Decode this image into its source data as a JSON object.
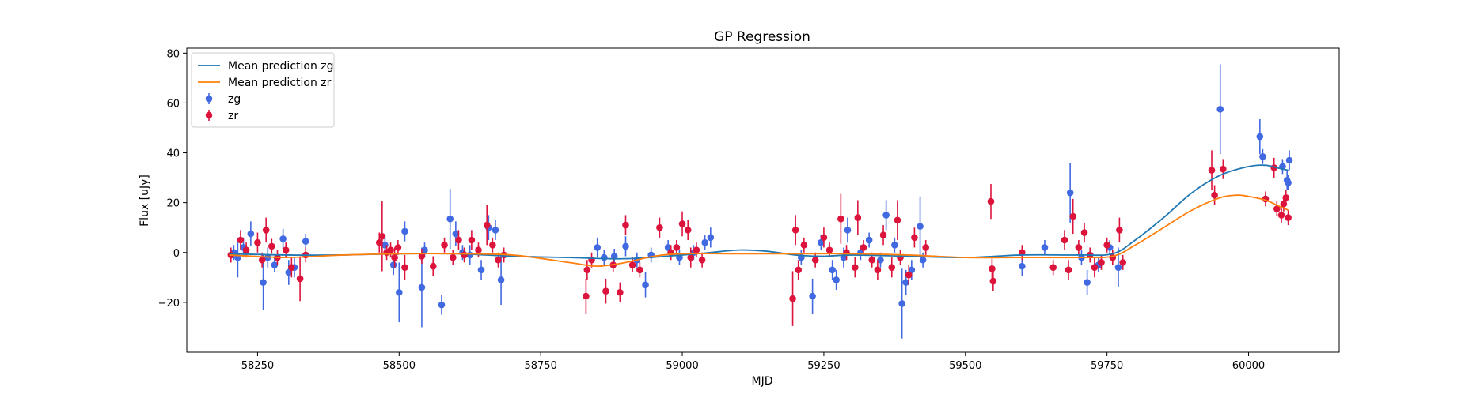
{
  "chart_data": {
    "type": "scatter",
    "title": "GP Regression",
    "xlabel": "MJD",
    "ylabel": "Flux [uJy]",
    "xlim": [
      58125,
      60160
    ],
    "ylim": [
      -40,
      82
    ],
    "xticks": [
      58250,
      58500,
      58750,
      59000,
      59250,
      59500,
      59750,
      60000
    ],
    "yticks": [
      -20,
      0,
      20,
      40,
      60,
      80
    ],
    "xtick_labels": [
      "58250",
      "58500",
      "58750",
      "59000",
      "59250",
      "59500",
      "59750",
      "60000"
    ],
    "ytick_labels": [
      "−20",
      "0",
      "20",
      "40",
      "60",
      "80"
    ],
    "legend_position": "upper-left",
    "legend": [
      {
        "label": "Mean prediction zg",
        "kind": "line",
        "color": "#1f77b4"
      },
      {
        "label": "Mean prediction zr",
        "kind": "line",
        "color": "#ff7f0e"
      },
      {
        "label": "zg",
        "kind": "errorbar",
        "color": "#4169e1"
      },
      {
        "label": "zr",
        "kind": "errorbar",
        "color": "#dc143c"
      }
    ],
    "lines": [
      {
        "name": "Mean prediction zg",
        "color": "#1f77b4",
        "x": [
          58200,
          58300,
          58400,
          58500,
          58600,
          58700,
          58800,
          58900,
          59000,
          59050,
          59100,
          59150,
          59200,
          59250,
          59300,
          59400,
          59500,
          59600,
          59700,
          59760,
          59800,
          59850,
          59900,
          59950,
          60000,
          60030,
          60050,
          60070
        ],
        "y": [
          -0.5,
          -1,
          -1,
          -0.5,
          -0.5,
          -1.5,
          -2,
          -2.5,
          -1,
          0,
          1,
          0.5,
          -1,
          -1.5,
          -1,
          -1.5,
          -2,
          -1,
          -1,
          -0.5,
          5,
          14,
          24,
          31,
          34.5,
          35,
          34,
          33
        ]
      },
      {
        "name": "Mean prediction zr",
        "color": "#ff7f0e",
        "x": [
          58200,
          58300,
          58400,
          58500,
          58600,
          58700,
          58800,
          58850,
          58900,
          58950,
          59000,
          59100,
          59200,
          59300,
          59400,
          59500,
          59600,
          59700,
          59760,
          59800,
          59850,
          59900,
          59950,
          59980,
          60000,
          60030,
          60050,
          60070
        ],
        "y": [
          -1,
          -2,
          -1,
          -0.5,
          -0.5,
          -1,
          -4,
          -5.5,
          -4,
          -1.5,
          -0.5,
          -0.5,
          -0.5,
          -0.5,
          -1,
          -2,
          -2,
          -2,
          -1.5,
          3,
          10,
          17,
          22,
          23,
          22.5,
          21,
          19,
          17
        ]
      }
    ],
    "series": [
      {
        "name": "zg",
        "color": "#4169e1",
        "points": [
          {
            "x": 58208,
            "y": 0,
            "err": 3
          },
          {
            "x": 58215,
            "y": -2,
            "err": 8
          },
          {
            "x": 58225,
            "y": 2,
            "err": 4
          },
          {
            "x": 58238,
            "y": 7.5,
            "err": 5
          },
          {
            "x": 58260,
            "y": -12,
            "err": 11
          },
          {
            "x": 58268,
            "y": -2,
            "err": 4
          },
          {
            "x": 58280,
            "y": -5,
            "err": 3
          },
          {
            "x": 58295,
            "y": 5.5,
            "err": 4
          },
          {
            "x": 58305,
            "y": -8,
            "err": 5
          },
          {
            "x": 58315,
            "y": -6,
            "err": 4
          },
          {
            "x": 58335,
            "y": 4.5,
            "err": 3
          },
          {
            "x": 58475,
            "y": 3,
            "err": 4
          },
          {
            "x": 58490,
            "y": -5,
            "err": 4
          },
          {
            "x": 58500,
            "y": -16,
            "err": 12
          },
          {
            "x": 58510,
            "y": 8.5,
            "err": 4
          },
          {
            "x": 58540,
            "y": -14,
            "err": 16
          },
          {
            "x": 58545,
            "y": 1,
            "err": 3
          },
          {
            "x": 58575,
            "y": -21,
            "err": 4
          },
          {
            "x": 58590,
            "y": 13.5,
            "err": 12
          },
          {
            "x": 58600,
            "y": 7.5,
            "err": 5
          },
          {
            "x": 58612,
            "y": 0,
            "err": 3
          },
          {
            "x": 58625,
            "y": -1,
            "err": 4
          },
          {
            "x": 58645,
            "y": -7,
            "err": 4
          },
          {
            "x": 58658,
            "y": 10,
            "err": 5
          },
          {
            "x": 58670,
            "y": 9,
            "err": 4
          },
          {
            "x": 58680,
            "y": -11,
            "err": 10
          },
          {
            "x": 58850,
            "y": 2,
            "err": 4
          },
          {
            "x": 58862,
            "y": -2,
            "err": 3
          },
          {
            "x": 58880,
            "y": -1.5,
            "err": 3
          },
          {
            "x": 58900,
            "y": 2.5,
            "err": 4
          },
          {
            "x": 58920,
            "y": -3,
            "err": 3
          },
          {
            "x": 58935,
            "y": -13,
            "err": 5
          },
          {
            "x": 58945,
            "y": -1,
            "err": 3
          },
          {
            "x": 58975,
            "y": 2,
            "err": 3
          },
          {
            "x": 58995,
            "y": -2,
            "err": 3
          },
          {
            "x": 59020,
            "y": 0,
            "err": 3
          },
          {
            "x": 59040,
            "y": 4,
            "err": 3
          },
          {
            "x": 59050,
            "y": 6,
            "err": 4
          },
          {
            "x": 59210,
            "y": -2,
            "err": 3
          },
          {
            "x": 59230,
            "y": -17.5,
            "err": 7
          },
          {
            "x": 59245,
            "y": 4,
            "err": 3
          },
          {
            "x": 59265,
            "y": -7,
            "err": 4
          },
          {
            "x": 59272,
            "y": -11,
            "err": 4
          },
          {
            "x": 59285,
            "y": -2,
            "err": 4
          },
          {
            "x": 59292,
            "y": 9,
            "err": 5
          },
          {
            "x": 59315,
            "y": 0,
            "err": 3
          },
          {
            "x": 59330,
            "y": 5,
            "err": 3
          },
          {
            "x": 59350,
            "y": -3,
            "err": 3
          },
          {
            "x": 59360,
            "y": 15,
            "err": 6
          },
          {
            "x": 59375,
            "y": 3,
            "err": 3
          },
          {
            "x": 59388,
            "y": -20.5,
            "err": 14
          },
          {
            "x": 59395,
            "y": -12,
            "err": 5
          },
          {
            "x": 59405,
            "y": -7,
            "err": 4
          },
          {
            "x": 59420,
            "y": 10.5,
            "err": 12
          },
          {
            "x": 59425,
            "y": -3,
            "err": 3
          },
          {
            "x": 59600,
            "y": -5.5,
            "err": 4
          },
          {
            "x": 59640,
            "y": 2,
            "err": 3
          },
          {
            "x": 59685,
            "y": 24,
            "err": 12
          },
          {
            "x": 59705,
            "y": -2,
            "err": 3
          },
          {
            "x": 59715,
            "y": -12,
            "err": 5
          },
          {
            "x": 59735,
            "y": -5,
            "err": 3
          },
          {
            "x": 59755,
            "y": 2,
            "err": 3
          },
          {
            "x": 59770,
            "y": -6,
            "err": 8
          },
          {
            "x": 59950,
            "y": 57.5,
            "err": 18
          },
          {
            "x": 60020,
            "y": 46.5,
            "err": 7
          },
          {
            "x": 60025,
            "y": 38.5,
            "err": 3
          },
          {
            "x": 60060,
            "y": 34.5,
            "err": 3
          },
          {
            "x": 60068,
            "y": 29,
            "err": 4
          },
          {
            "x": 60072,
            "y": 37,
            "err": 4
          },
          {
            "x": 60070,
            "y": 28,
            "err": 3
          }
        ]
      },
      {
        "name": "zr",
        "color": "#dc143c",
        "points": [
          {
            "x": 58203,
            "y": -1,
            "err": 3
          },
          {
            "x": 58220,
            "y": 5,
            "err": 4
          },
          {
            "x": 58230,
            "y": 1,
            "err": 3
          },
          {
            "x": 58250,
            "y": 4,
            "err": 4
          },
          {
            "x": 58258,
            "y": -3,
            "err": 3
          },
          {
            "x": 58265,
            "y": 9,
            "err": 5
          },
          {
            "x": 58275,
            "y": 2.5,
            "err": 3
          },
          {
            "x": 58285,
            "y": -2,
            "err": 3
          },
          {
            "x": 58300,
            "y": 1,
            "err": 3
          },
          {
            "x": 58310,
            "y": -6,
            "err": 4
          },
          {
            "x": 58325,
            "y": -10.5,
            "err": 9
          },
          {
            "x": 58335,
            "y": -1,
            "err": 3
          },
          {
            "x": 58465,
            "y": 4,
            "err": 4
          },
          {
            "x": 58470,
            "y": 6.5,
            "err": 14
          },
          {
            "x": 58478,
            "y": 0,
            "err": 3
          },
          {
            "x": 58485,
            "y": 1,
            "err": 3
          },
          {
            "x": 58492,
            "y": -2,
            "err": 4
          },
          {
            "x": 58498,
            "y": 2,
            "err": 3
          },
          {
            "x": 58510,
            "y": -6,
            "err": 5
          },
          {
            "x": 58540,
            "y": -1.5,
            "err": 3
          },
          {
            "x": 58560,
            "y": -5.5,
            "err": 4
          },
          {
            "x": 58580,
            "y": 3,
            "err": 3
          },
          {
            "x": 58595,
            "y": -2,
            "err": 3
          },
          {
            "x": 58605,
            "y": 5,
            "err": 4
          },
          {
            "x": 58615,
            "y": -1,
            "err": 3
          },
          {
            "x": 58628,
            "y": 5,
            "err": 4
          },
          {
            "x": 58640,
            "y": 1,
            "err": 3
          },
          {
            "x": 58655,
            "y": 11,
            "err": 8
          },
          {
            "x": 58665,
            "y": 3,
            "err": 3
          },
          {
            "x": 58675,
            "y": -3,
            "err": 3
          },
          {
            "x": 58685,
            "y": -1,
            "err": 3
          },
          {
            "x": 58830,
            "y": -17.5,
            "err": 7
          },
          {
            "x": 58832,
            "y": -7,
            "err": 4
          },
          {
            "x": 58840,
            "y": -3,
            "err": 3
          },
          {
            "x": 58865,
            "y": -15.5,
            "err": 5
          },
          {
            "x": 58878,
            "y": -5,
            "err": 3
          },
          {
            "x": 58890,
            "y": -16,
            "err": 4
          },
          {
            "x": 58900,
            "y": 11,
            "err": 4
          },
          {
            "x": 58912,
            "y": -5,
            "err": 3
          },
          {
            "x": 58925,
            "y": -7,
            "err": 3
          },
          {
            "x": 58960,
            "y": 10,
            "err": 4
          },
          {
            "x": 58980,
            "y": 0,
            "err": 3
          },
          {
            "x": 58990,
            "y": 2,
            "err": 3
          },
          {
            "x": 59000,
            "y": 11.5,
            "err": 5
          },
          {
            "x": 59010,
            "y": 9,
            "err": 4
          },
          {
            "x": 59015,
            "y": -2,
            "err": 4
          },
          {
            "x": 59025,
            "y": 1,
            "err": 3
          },
          {
            "x": 59035,
            "y": -3,
            "err": 3
          },
          {
            "x": 59195,
            "y": -18.5,
            "err": 11
          },
          {
            "x": 59200,
            "y": 9,
            "err": 6
          },
          {
            "x": 59205,
            "y": -7,
            "err": 4
          },
          {
            "x": 59215,
            "y": 3,
            "err": 3
          },
          {
            "x": 59235,
            "y": -3,
            "err": 3
          },
          {
            "x": 59250,
            "y": 6,
            "err": 4
          },
          {
            "x": 59260,
            "y": 1,
            "err": 3
          },
          {
            "x": 59280,
            "y": 13.5,
            "err": 10
          },
          {
            "x": 59290,
            "y": 0,
            "err": 3
          },
          {
            "x": 59305,
            "y": -6,
            "err": 4
          },
          {
            "x": 59310,
            "y": 14,
            "err": 7
          },
          {
            "x": 59320,
            "y": 2,
            "err": 3
          },
          {
            "x": 59335,
            "y": -3,
            "err": 3
          },
          {
            "x": 59345,
            "y": -7,
            "err": 4
          },
          {
            "x": 59355,
            "y": 7,
            "err": 4
          },
          {
            "x": 59370,
            "y": -6,
            "err": 4
          },
          {
            "x": 59380,
            "y": 13,
            "err": 8
          },
          {
            "x": 59385,
            "y": -2,
            "err": 3
          },
          {
            "x": 59400,
            "y": -9,
            "err": 4
          },
          {
            "x": 59410,
            "y": 6,
            "err": 4
          },
          {
            "x": 59430,
            "y": 2,
            "err": 3
          },
          {
            "x": 59545,
            "y": 20.5,
            "err": 7
          },
          {
            "x": 59547,
            "y": -6.5,
            "err": 4
          },
          {
            "x": 59549,
            "y": -11.5,
            "err": 4
          },
          {
            "x": 59600,
            "y": 0,
            "err": 3
          },
          {
            "x": 59655,
            "y": -6,
            "err": 3
          },
          {
            "x": 59675,
            "y": 5,
            "err": 4
          },
          {
            "x": 59682,
            "y": -7,
            "err": 4
          },
          {
            "x": 59690,
            "y": 14.5,
            "err": 7
          },
          {
            "x": 59700,
            "y": 2,
            "err": 3
          },
          {
            "x": 59710,
            "y": 8,
            "err": 4
          },
          {
            "x": 59720,
            "y": -1,
            "err": 3
          },
          {
            "x": 59728,
            "y": -6,
            "err": 4
          },
          {
            "x": 59740,
            "y": -4,
            "err": 3
          },
          {
            "x": 59750,
            "y": 3,
            "err": 3
          },
          {
            "x": 59760,
            "y": -2,
            "err": 3
          },
          {
            "x": 59772,
            "y": 9,
            "err": 5
          },
          {
            "x": 59778,
            "y": -4,
            "err": 3
          },
          {
            "x": 59935,
            "y": 33,
            "err": 8
          },
          {
            "x": 59940,
            "y": 23,
            "err": 4
          },
          {
            "x": 59955,
            "y": 33.5,
            "err": 4
          },
          {
            "x": 60030,
            "y": 21.5,
            "err": 3
          },
          {
            "x": 60045,
            "y": 34,
            "err": 4
          },
          {
            "x": 60050,
            "y": 17.5,
            "err": 3
          },
          {
            "x": 60058,
            "y": 15,
            "err": 3
          },
          {
            "x": 60062,
            "y": 19.5,
            "err": 3
          },
          {
            "x": 60066,
            "y": 22,
            "err": 3
          },
          {
            "x": 60070,
            "y": 14,
            "err": 3
          }
        ]
      }
    ]
  }
}
